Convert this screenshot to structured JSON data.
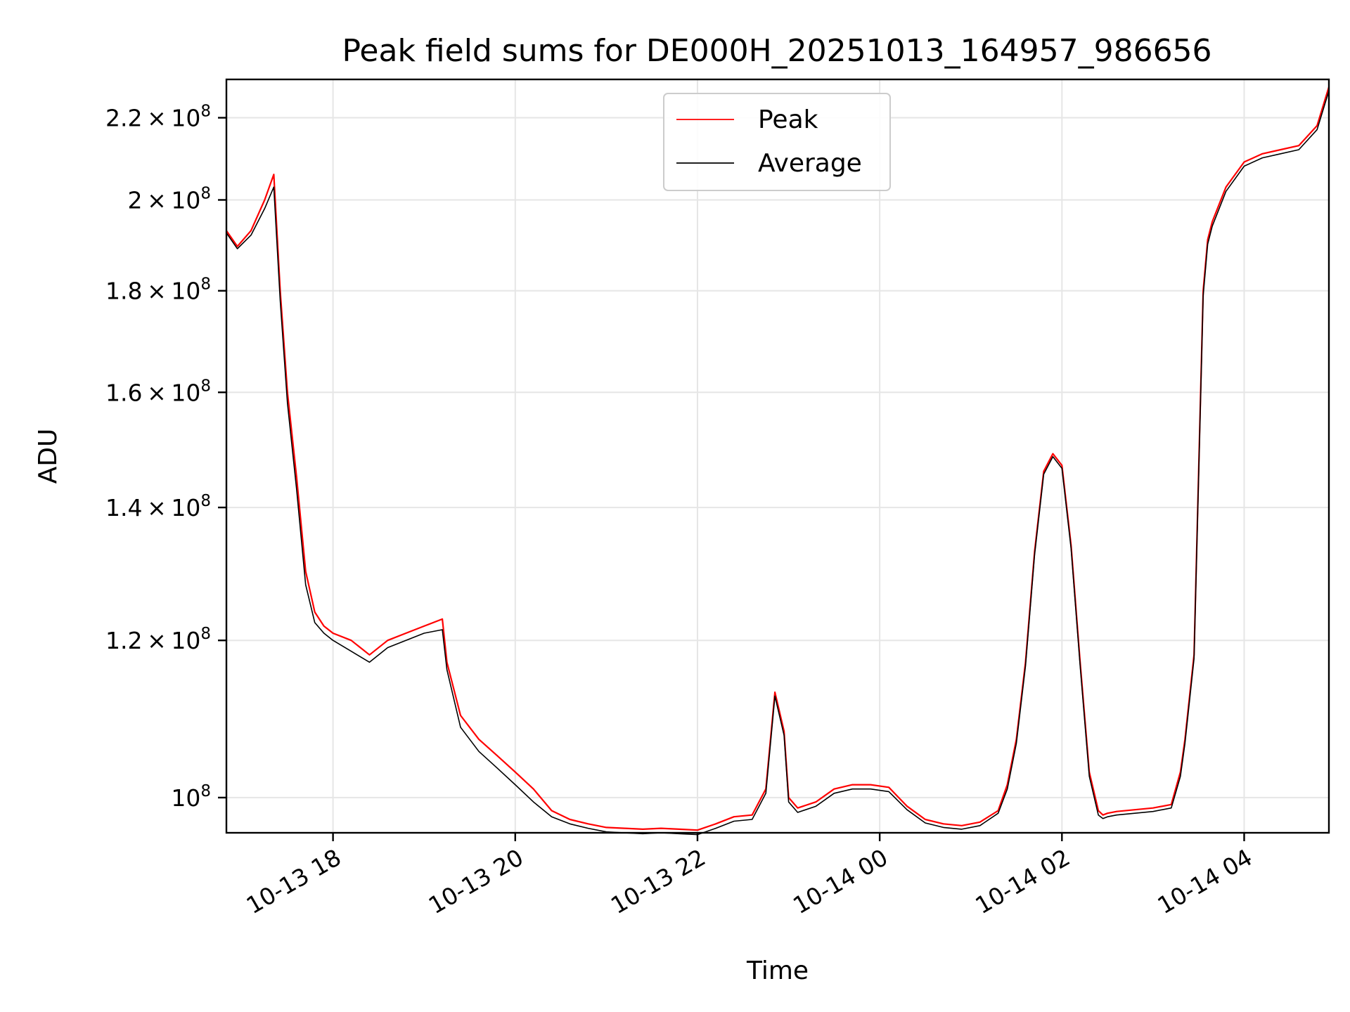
{
  "chart_data": {
    "type": "line",
    "title": "Peak field sums for DE000H_20251013_164957_986656",
    "xlabel": "Time",
    "ylabel": "ADU",
    "yscale": "log",
    "xlim_hours": [
      16.83,
      28.93
    ],
    "ylim": [
      96000000,
      230000000
    ],
    "legend_position": "top-center",
    "grid": true,
    "x_ticks": [
      {
        "hour": 18,
        "label": "10-13 18"
      },
      {
        "hour": 20,
        "label": "10-13 20"
      },
      {
        "hour": 22,
        "label": "10-13 22"
      },
      {
        "hour": 24,
        "label": "10-14 00"
      },
      {
        "hour": 26,
        "label": "10-14 02"
      },
      {
        "hour": 28,
        "label": "10-14 04"
      }
    ],
    "y_ticks": [
      {
        "value": 100000000,
        "mantissa": "",
        "exp": "8"
      },
      {
        "value": 120000000,
        "mantissa": "1.2",
        "exp": "8"
      },
      {
        "value": 140000000,
        "mantissa": "1.4",
        "exp": "8"
      },
      {
        "value": 160000000,
        "mantissa": "1.6",
        "exp": "8"
      },
      {
        "value": 180000000,
        "mantissa": "1.8",
        "exp": "8"
      },
      {
        "value": 200000000,
        "mantissa": "2",
        "exp": "8"
      },
      {
        "value": 220000000,
        "mantissa": "2.2",
        "exp": "8"
      }
    ],
    "series": [
      {
        "name": "Peak",
        "color": "#ff0000",
        "x_hours": [
          16.83,
          16.95,
          17.1,
          17.25,
          17.35,
          17.42,
          17.5,
          17.6,
          17.7,
          17.8,
          17.9,
          18.0,
          18.2,
          18.4,
          18.6,
          18.8,
          19.0,
          19.2,
          19.25,
          19.4,
          19.6,
          19.8,
          20.0,
          20.2,
          20.4,
          20.6,
          20.8,
          21.0,
          21.2,
          21.4,
          21.6,
          21.8,
          22.0,
          22.2,
          22.4,
          22.6,
          22.75,
          22.85,
          22.95,
          23.0,
          23.1,
          23.3,
          23.5,
          23.7,
          23.9,
          24.1,
          24.3,
          24.5,
          24.7,
          24.9,
          25.1,
          25.3,
          25.4,
          25.5,
          25.6,
          25.7,
          25.8,
          25.9,
          26.0,
          26.1,
          26.2,
          26.3,
          26.4,
          26.45,
          26.5,
          26.6,
          26.8,
          27.0,
          27.2,
          27.3,
          27.35,
          27.45,
          27.55,
          27.6,
          27.65,
          27.8,
          28.0,
          28.2,
          28.4,
          28.6,
          28.8,
          28.93
        ],
        "values": [
          193000000,
          189500000,
          193000000,
          200000000,
          206000000,
          180000000,
          160000000,
          145000000,
          130000000,
          124000000,
          122000000,
          121000000,
          120000000,
          118000000,
          120000000,
          121000000,
          122000000,
          123000000,
          117000000,
          110000000,
          107000000,
          105000000,
          103000000,
          101000000,
          98500000,
          97500000,
          97000000,
          96600000,
          96500000,
          96400000,
          96500000,
          96400000,
          96300000,
          97000000,
          97800000,
          98000000,
          101000000,
          113000000,
          108000000,
          100000000,
          98800000,
          99500000,
          101000000,
          101500000,
          101500000,
          101200000,
          99000000,
          97500000,
          97000000,
          96800000,
          97200000,
          98500000,
          101500000,
          107000000,
          117000000,
          133000000,
          146000000,
          149000000,
          147000000,
          134000000,
          117000000,
          103000000,
          98500000,
          98000000,
          98200000,
          98400000,
          98600000,
          98800000,
          99200000,
          103000000,
          107000000,
          118000000,
          180000000,
          191000000,
          195000000,
          203000000,
          209000000,
          211000000,
          212000000,
          213000000,
          218000000,
          228000000
        ]
      },
      {
        "name": "Average",
        "color": "#000000",
        "x_hours": [
          16.83,
          16.95,
          17.1,
          17.25,
          17.35,
          17.42,
          17.5,
          17.6,
          17.7,
          17.8,
          17.9,
          18.0,
          18.2,
          18.4,
          18.6,
          18.8,
          19.0,
          19.2,
          19.25,
          19.4,
          19.6,
          19.8,
          20.0,
          20.2,
          20.4,
          20.6,
          20.8,
          21.0,
          21.2,
          21.4,
          21.6,
          21.8,
          22.0,
          22.2,
          22.4,
          22.6,
          22.75,
          22.85,
          22.95,
          23.0,
          23.1,
          23.3,
          23.5,
          23.7,
          23.9,
          24.1,
          24.3,
          24.5,
          24.7,
          24.9,
          25.1,
          25.3,
          25.4,
          25.5,
          25.6,
          25.7,
          25.8,
          25.9,
          26.0,
          26.1,
          26.2,
          26.3,
          26.4,
          26.45,
          26.5,
          26.6,
          26.8,
          27.0,
          27.2,
          27.3,
          27.35,
          27.45,
          27.55,
          27.6,
          27.65,
          27.8,
          28.0,
          28.2,
          28.4,
          28.6,
          28.8,
          28.93
        ],
        "values": [
          192500000,
          189000000,
          192000000,
          198000000,
          203000000,
          178000000,
          158000000,
          143000000,
          128000000,
          122500000,
          121000000,
          120000000,
          118500000,
          117000000,
          119000000,
          120000000,
          121000000,
          121500000,
          116000000,
          108500000,
          105500000,
          103500000,
          101500000,
          99500000,
          97800000,
          97000000,
          96500000,
          96100000,
          96000000,
          95900000,
          96000000,
          95900000,
          95800000,
          96500000,
          97300000,
          97500000,
          100500000,
          112500000,
          107500000,
          99500000,
          98300000,
          99000000,
          100500000,
          101000000,
          101000000,
          100700000,
          98600000,
          97100000,
          96600000,
          96400000,
          96800000,
          98200000,
          101000000,
          106500000,
          116500000,
          132500000,
          145500000,
          148500000,
          146500000,
          133500000,
          116500000,
          102500000,
          98000000,
          97600000,
          97800000,
          98000000,
          98200000,
          98400000,
          98800000,
          102500000,
          106500000,
          117500000,
          179000000,
          190000000,
          194000000,
          202000000,
          208000000,
          210000000,
          211000000,
          212000000,
          217000000,
          227000000
        ]
      }
    ]
  }
}
